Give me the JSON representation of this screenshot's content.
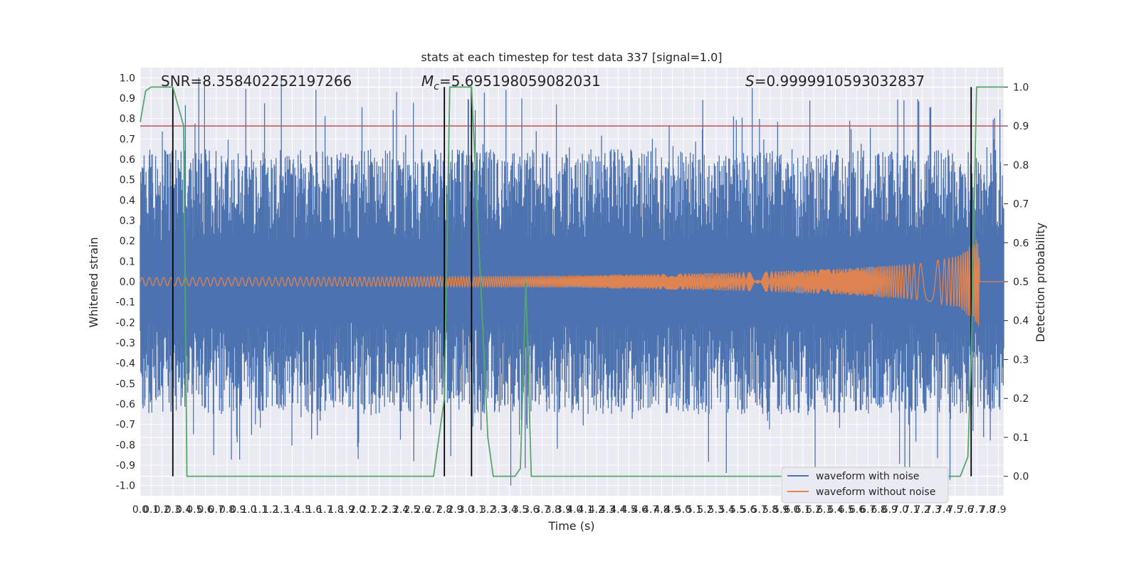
{
  "chart_data": {
    "type": "line",
    "title": "stats at each timestep for test data 337 [signal=1.0]",
    "xlabel": "Time (s)",
    "ylabel_left": "Whitened strain",
    "ylabel_right": "Detection probability",
    "xlim": [
      0.0,
      7.95
    ],
    "ylim_left": [
      -1.05,
      1.05
    ],
    "ylim_right": [
      -0.05,
      1.05
    ],
    "x_ticks": [
      "0.0",
      "0.1",
      "0.2",
      "0.3",
      "0.4",
      "0.5",
      "0.6",
      "0.7",
      "0.8",
      "0.9",
      "1.0",
      "1.1",
      "1.2",
      "1.3",
      "1.4",
      "1.5",
      "1.6",
      "1.7",
      "1.8",
      "1.9",
      "2.0",
      "2.1",
      "2.2",
      "2.3",
      "2.4",
      "2.5",
      "2.6",
      "2.7",
      "2.8",
      "2.9",
      "3.0",
      "3.1",
      "3.2",
      "3.3",
      "3.4",
      "3.5",
      "3.6",
      "3.7",
      "3.8",
      "3.9",
      "4.0",
      "4.1",
      "4.2",
      "4.3",
      "4.4",
      "4.5",
      "4.6",
      "4.7",
      "4.8",
      "4.9",
      "5.0",
      "5.1",
      "5.2",
      "5.3",
      "5.4",
      "5.5",
      "5.6",
      "5.7",
      "5.8",
      "5.9",
      "6.0",
      "6.1",
      "6.2",
      "6.3",
      "6.4",
      "6.5",
      "6.6",
      "6.7",
      "6.8",
      "6.9",
      "7.0",
      "7.1",
      "7.2",
      "7.3",
      "7.4",
      "7.5",
      "7.6",
      "7.7",
      "7.8",
      "7.9"
    ],
    "y_ticks_left": [
      "1.0",
      "0.9",
      "0.8",
      "0.7",
      "0.6",
      "0.5",
      "0.4",
      "0.3",
      "0.2",
      "0.1",
      "0.0",
      "-0.1",
      "-0.2",
      "-0.3",
      "-0.4",
      "-0.5",
      "-0.6",
      "-0.7",
      "-0.8",
      "-0.9",
      "-1.0"
    ],
    "y_ticks_right": [
      "1.0",
      "0.9",
      "0.8",
      "0.7",
      "0.6",
      "0.5",
      "0.4",
      "0.3",
      "0.2",
      "0.1",
      "0.0"
    ],
    "annotations": {
      "snr": "SNR=8.358402252197266",
      "mc_symbol": "M",
      "mc_sub": "c",
      "mc_value": "=5.695198059082031",
      "s_symbol": "S",
      "s_value": "=0.9999910593032837"
    },
    "threshold": 0.9,
    "vlines": [
      0.3,
      2.8,
      3.05,
      7.65
    ],
    "series": [
      {
        "name": "waveform with noise",
        "color": "#4c72b0",
        "noise_band": 0.45,
        "max_spike": 1.0
      },
      {
        "name": "waveform without noise",
        "color": "#dd8452",
        "envelope": [
          [
            0.0,
            0.02
          ],
          [
            2.0,
            0.022
          ],
          [
            4.0,
            0.03
          ],
          [
            5.5,
            0.045
          ],
          [
            6.5,
            0.065
          ],
          [
            7.2,
            0.09
          ],
          [
            7.55,
            0.13
          ],
          [
            7.72,
            0.22
          ],
          [
            7.73,
            0.0
          ],
          [
            7.95,
            0.0
          ]
        ]
      },
      {
        "name": "detection probability",
        "axis": "right",
        "color": "#55a868",
        "x": [
          0.0,
          0.05,
          0.1,
          0.3,
          0.35,
          0.4,
          0.43,
          0.6,
          2.7,
          2.8,
          2.85,
          3.05,
          3.2,
          3.25,
          3.45,
          3.5,
          3.55,
          3.6,
          3.7,
          7.55,
          7.62,
          7.65,
          7.7,
          7.95
        ],
        "y": [
          0.91,
          0.99,
          1.0,
          1.0,
          0.95,
          0.9,
          0.0,
          0.0,
          0.0,
          0.2,
          1.0,
          1.0,
          0.1,
          0.0,
          0.0,
          0.02,
          0.5,
          0.0,
          0.0,
          0.0,
          0.05,
          0.3,
          1.0,
          1.0
        ]
      }
    ],
    "legend": [
      "waveform with noise",
      "waveform without noise"
    ],
    "legend_position": "lower right",
    "colors": {
      "background": "#eaeaf2",
      "grid": "#ffffff",
      "threshold": "#c44e52",
      "vline": "#000000"
    }
  }
}
